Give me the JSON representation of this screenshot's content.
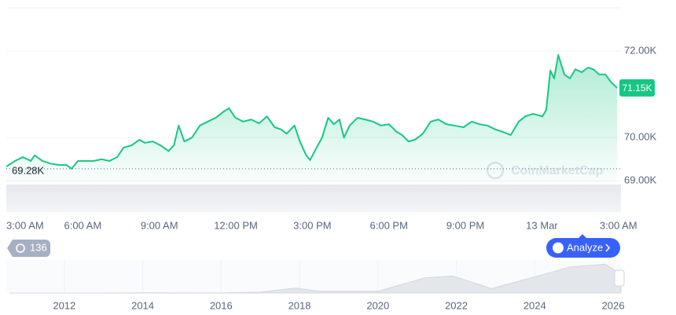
{
  "chart_data": {
    "type": "line",
    "color": "#16c784",
    "x": [
      0,
      0.34,
      0.65,
      0.96,
      1.11,
      1.42,
      1.73,
      2.04,
      2.35,
      2.56,
      2.81,
      3.12,
      3.43,
      3.73,
      4.04,
      4.35,
      4.6,
      4.91,
      5.22,
      5.43,
      5.74,
      6.05,
      6.36,
      6.57,
      6.76,
      6.98,
      7.28,
      7.59,
      7.9,
      8.21,
      8.52,
      8.73,
      8.98,
      9.29,
      9.6,
      9.91,
      10.22,
      10.52,
      10.77,
      10.99,
      11.3,
      11.51,
      11.76,
      11.91,
      12.13,
      12.38,
      12.62,
      12.84,
      13.06,
      13.24,
      13.46,
      13.77,
      14.07,
      14.38,
      14.69,
      15.0,
      15.31,
      15.52,
      15.77,
      16.02,
      16.33,
      16.64,
      16.94,
      17.25,
      17.56,
      17.93,
      18.24,
      18.55,
      18.86,
      19.17,
      19.48,
      19.78,
      20.09,
      20.34,
      20.65,
      21.02,
      21.17,
      21.33,
      21.48,
      21.64,
      21.88,
      22.1,
      22.31,
      22.56,
      22.81,
      23.02,
      23.24,
      23.49,
      23.73,
      23.95
    ],
    "values": [
      69.33,
      69.46,
      69.55,
      69.46,
      69.59,
      69.46,
      69.4,
      69.37,
      69.37,
      69.28,
      69.46,
      69.46,
      69.46,
      69.5,
      69.46,
      69.55,
      69.77,
      69.82,
      69.95,
      69.88,
      69.91,
      69.82,
      69.69,
      69.82,
      70.28,
      69.91,
      70.0,
      70.28,
      70.37,
      70.46,
      70.6,
      70.68,
      70.46,
      70.37,
      70.42,
      70.33,
      70.49,
      70.24,
      70.19,
      70.09,
      70.28,
      69.91,
      69.59,
      69.48,
      69.73,
      70.0,
      70.46,
      70.31,
      70.42,
      70.0,
      70.28,
      70.46,
      70.42,
      70.37,
      70.28,
      70.31,
      70.13,
      70.06,
      69.91,
      69.95,
      70.09,
      70.37,
      70.42,
      70.31,
      70.28,
      70.24,
      70.37,
      70.31,
      70.28,
      70.19,
      70.13,
      70.06,
      70.37,
      70.49,
      70.55,
      70.49,
      70.64,
      71.55,
      71.37,
      71.91,
      71.46,
      71.37,
      71.58,
      71.51,
      71.62,
      71.58,
      71.46,
      71.46,
      71.27,
      71.15
    ],
    "xlim": [
      0,
      24.1
    ],
    "xticks": [
      {
        "value": 0,
        "label": "3:00 AM"
      },
      {
        "value": 3,
        "label": "6:00 AM"
      },
      {
        "value": 6,
        "label": "9:00 AM"
      },
      {
        "value": 9,
        "label": "12:00 PM"
      },
      {
        "value": 12,
        "label": "3:00 PM"
      },
      {
        "value": 15,
        "label": "6:00 PM"
      },
      {
        "value": 18,
        "label": "9:00 PM"
      },
      {
        "value": 21,
        "label": "13 Mar"
      },
      {
        "value": 24,
        "label": "3:00 AM"
      }
    ],
    "ylim": [
      68.95,
      73.0
    ],
    "yticks": [
      {
        "value": 72,
        "label": "72.00K"
      },
      {
        "value": 70,
        "label": "70.00K"
      },
      {
        "value": 69,
        "label": "69.00K"
      }
    ],
    "grid": true,
    "current_price": {
      "value": 71.15,
      "label": "71.15K"
    },
    "open_price": {
      "value": 69.28,
      "label": "69.28K"
    },
    "watermark": "CoinMarketCap",
    "badge": "136",
    "button": "Analyze",
    "navigator": {
      "x": [
        2010.6,
        2013,
        2014,
        2016,
        2017,
        2017.9,
        2018.5,
        2020,
        2021.2,
        2021.9,
        2022.9,
        2024.2,
        2024.9,
        2025.8,
        2026.2
      ],
      "values": [
        0,
        0.1,
        0.8,
        0.4,
        4,
        19,
        7,
        7,
        58,
        65,
        17,
        70,
        100,
        110,
        71
      ],
      "xlim": [
        2010.52,
        2026.2
      ],
      "ylim": [
        0,
        120
      ],
      "xticks": [
        2012,
        2014,
        2016,
        2018,
        2020,
        2022,
        2024,
        2026
      ]
    }
  }
}
